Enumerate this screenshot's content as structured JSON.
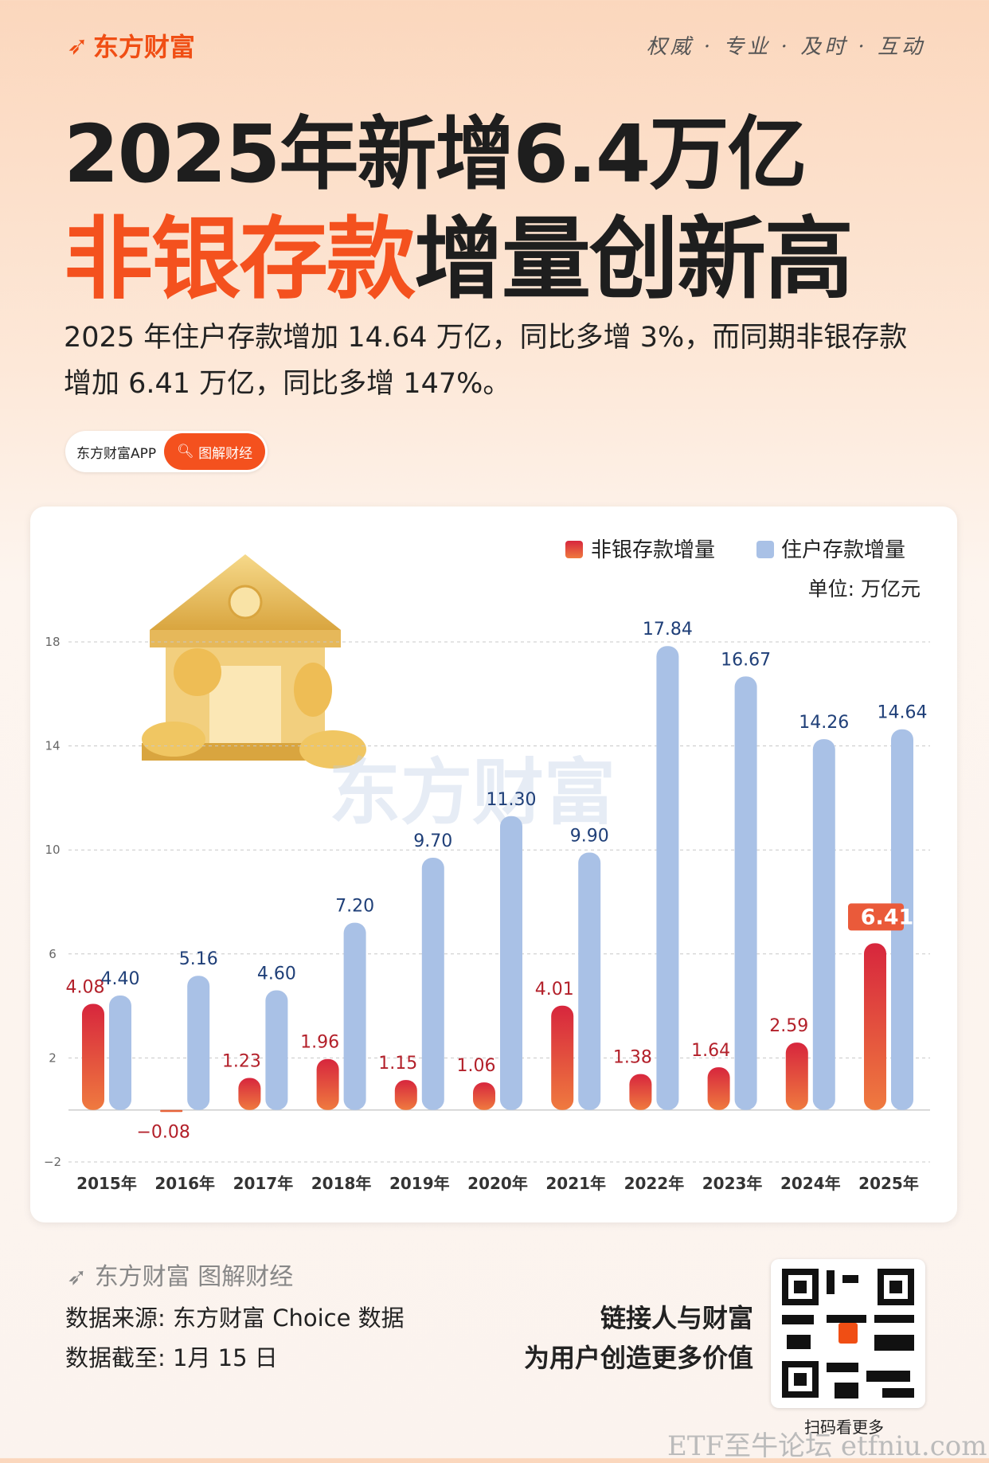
{
  "header": {
    "brand": "东方财富",
    "slogan": "权威 · 专业 · 及时 · 互动"
  },
  "title": {
    "line1": "2025年新增6.4万亿",
    "line2_highlight": "非银存款",
    "line2_rest": "增量创新高"
  },
  "subtitle": "2025 年住户存款增加 14.64 万亿，同比多增 3%，而同期非银存款增加 6.41 万亿，同比多增 147%。",
  "pill": {
    "app": "东方财富APP",
    "search": "图解财经"
  },
  "chart_data": {
    "type": "bar",
    "categories": [
      "2015年",
      "2016年",
      "2017年",
      "2018年",
      "2019年",
      "2020年",
      "2021年",
      "2022年",
      "2023年",
      "2024年",
      "2025年"
    ],
    "series": [
      {
        "name": "非银存款增量",
        "values": [
          4.08,
          -0.08,
          1.23,
          1.96,
          1.15,
          1.06,
          4.01,
          1.38,
          1.64,
          2.59,
          6.41
        ],
        "color": "#e8643a"
      },
      {
        "name": "住户存款增量",
        "values": [
          4.4,
          5.16,
          4.6,
          7.2,
          9.7,
          11.3,
          9.9,
          17.84,
          16.67,
          14.26,
          14.64
        ],
        "color": "#a9c1e6"
      }
    ],
    "data_labels": {
      "nonbank": [
        "4.08",
        "−0.08",
        "1.23",
        "1.96",
        "1.15",
        "1.06",
        "4.01",
        "1.38",
        "1.64",
        "2.59",
        "6.41"
      ],
      "household": [
        "4.40",
        "5.16",
        "4.60",
        "7.20",
        "9.70",
        "11.30",
        "9.90",
        "17.84",
        "16.67",
        "14.26",
        "14.64"
      ]
    },
    "yticks": [
      "−2",
      "2",
      "6",
      "10",
      "14",
      "18"
    ],
    "ytick_values": [
      -2,
      2,
      6,
      10,
      14,
      18
    ],
    "ylim": [
      -2,
      18
    ],
    "grid": true,
    "unit": "单位: 万亿元",
    "legend_position": "top-right",
    "watermark": "东方财富"
  },
  "footer": {
    "brand": "东方财富 图解财经",
    "source": "数据来源: 东方财富 Choice 数据",
    "date": "数据截至: 1月 15 日",
    "tagline1": "链接人与财富",
    "tagline2": "为用户创造更多价值",
    "qr_caption": "扫码看更多",
    "watermark": "ETF至牛论坛 etfniu.com"
  }
}
